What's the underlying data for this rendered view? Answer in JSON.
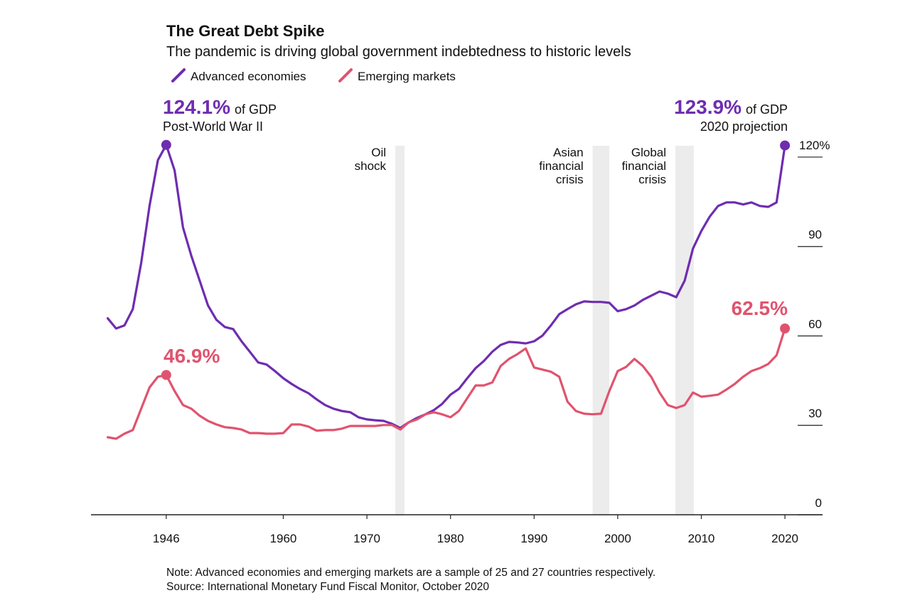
{
  "chart_data": {
    "type": "line",
    "title": "The Great Debt Spike",
    "subtitle": "The pandemic is driving global government indebtedness to historic levels",
    "x": [
      1939,
      1940,
      1941,
      1942,
      1943,
      1944,
      1945,
      1946,
      1947,
      1948,
      1949,
      1950,
      1951,
      1952,
      1953,
      1954,
      1955,
      1956,
      1957,
      1958,
      1959,
      1960,
      1961,
      1962,
      1963,
      1964,
      1965,
      1966,
      1967,
      1968,
      1969,
      1970,
      1971,
      1972,
      1973,
      1974,
      1975,
      1976,
      1977,
      1978,
      1979,
      1980,
      1981,
      1982,
      1983,
      1984,
      1985,
      1986,
      1987,
      1988,
      1989,
      1990,
      1991,
      1992,
      1993,
      1994,
      1995,
      1996,
      1997,
      1998,
      1999,
      2000,
      2001,
      2002,
      2003,
      2004,
      2005,
      2006,
      2007,
      2008,
      2009,
      2010,
      2011,
      2012,
      2013,
      2014,
      2015,
      2016,
      2017,
      2018,
      2019,
      2020
    ],
    "series": [
      {
        "name": "Advanced economies",
        "color": "#6e2db0",
        "values": [
          65.9,
          62.5,
          63.5,
          69,
          84.5,
          103.6,
          119,
          124.1,
          115.5,
          96.4,
          86.9,
          78.5,
          70.2,
          65.4,
          63,
          62.3,
          58.2,
          54.7,
          51.1,
          50.4,
          48.2,
          45.8,
          43.9,
          42.2,
          40.8,
          38.7,
          36.8,
          35.6,
          34.8,
          34.4,
          32.7,
          32,
          31.7,
          31.5,
          30.5,
          29.1,
          31,
          32.5,
          33.7,
          35.1,
          37.2,
          40.3,
          42.2,
          45.8,
          49.2,
          51.6,
          54.7,
          57,
          58,
          57.8,
          57.5,
          58.2,
          60.1,
          63.5,
          67.3,
          69,
          70.6,
          71.6,
          71.4,
          71.4,
          71.1,
          68.3,
          69,
          70.2,
          72.1,
          73.5,
          74.9,
          74.2,
          73,
          78.5,
          89.3,
          95.2,
          100,
          103.6,
          104.8,
          104.8,
          104.1,
          104.8,
          103.6,
          103.3,
          104.8,
          123.9
        ]
      },
      {
        "name": "Emerging markets",
        "color": "#e0536e",
        "values": [
          26,
          25.5,
          27.2,
          28.4,
          35.6,
          42.7,
          46.3,
          46.9,
          41.5,
          36.8,
          35.6,
          33.2,
          31.5,
          30.3,
          29.4,
          29.1,
          28.6,
          27.4,
          27.4,
          27.2,
          27.2,
          27.4,
          30.3,
          30.3,
          29.6,
          28.2,
          28.4,
          28.4,
          28.9,
          29.8,
          29.8,
          29.8,
          29.8,
          30.1,
          30.1,
          28.6,
          31,
          32,
          33.7,
          34.4,
          33.7,
          32.7,
          34.8,
          39.1,
          43.4,
          43.4,
          44.4,
          49.9,
          52.3,
          53.9,
          55.8,
          49.4,
          48.7,
          48,
          46.3,
          37.9,
          34.8,
          33.9,
          33.7,
          33.9,
          41.5,
          48.2,
          49.6,
          52.3,
          49.9,
          46.3,
          41,
          36.8,
          35.8,
          36.8,
          41,
          39.6,
          39.9,
          40.3,
          42,
          43.9,
          46.3,
          48.2,
          49.2,
          50.6,
          53.5,
          62.5
        ]
      }
    ],
    "xlim": [
      1937,
      2024.5
    ],
    "xticks": [
      1946,
      1960,
      1970,
      1980,
      1990,
      2000,
      2010,
      2020
    ],
    "ylim": [
      0,
      125
    ],
    "yticks": [
      0,
      30,
      60,
      90,
      {
        "value": 120,
        "label": "120%"
      }
    ],
    "shades": [
      {
        "lines": [
          "Oil",
          "shock"
        ],
        "start": 1973.4,
        "end": 1974.5
      },
      {
        "lines": [
          "Asian",
          "financial",
          "crisis"
        ],
        "start": 1997.0,
        "end": 1999.0
      },
      {
        "lines": [
          "Global",
          "financial",
          "crisis"
        ],
        "start": 2006.9,
        "end": 2009.1
      }
    ],
    "annotations": [
      {
        "series": 0,
        "x": 1946,
        "value": 124.1,
        "label": "124.1%",
        "suffix": "of GDP",
        "note": "Post-World War II"
      },
      {
        "series": 0,
        "x": 2020,
        "value": 123.9,
        "label": "123.9%",
        "suffix": "of GDP",
        "note": "2020 projection"
      },
      {
        "series": 1,
        "x": 1946,
        "value": 46.9,
        "label": "46.9%"
      },
      {
        "series": 1,
        "x": 2020,
        "value": 62.5,
        "label": "62.5%"
      }
    ],
    "notes": [
      "Note: Advanced economies and emerging markets are a sample of 25 and 27 countries respectively.",
      "Source: International Monetary Fund Fiscal Monitor, October 2020"
    ]
  }
}
